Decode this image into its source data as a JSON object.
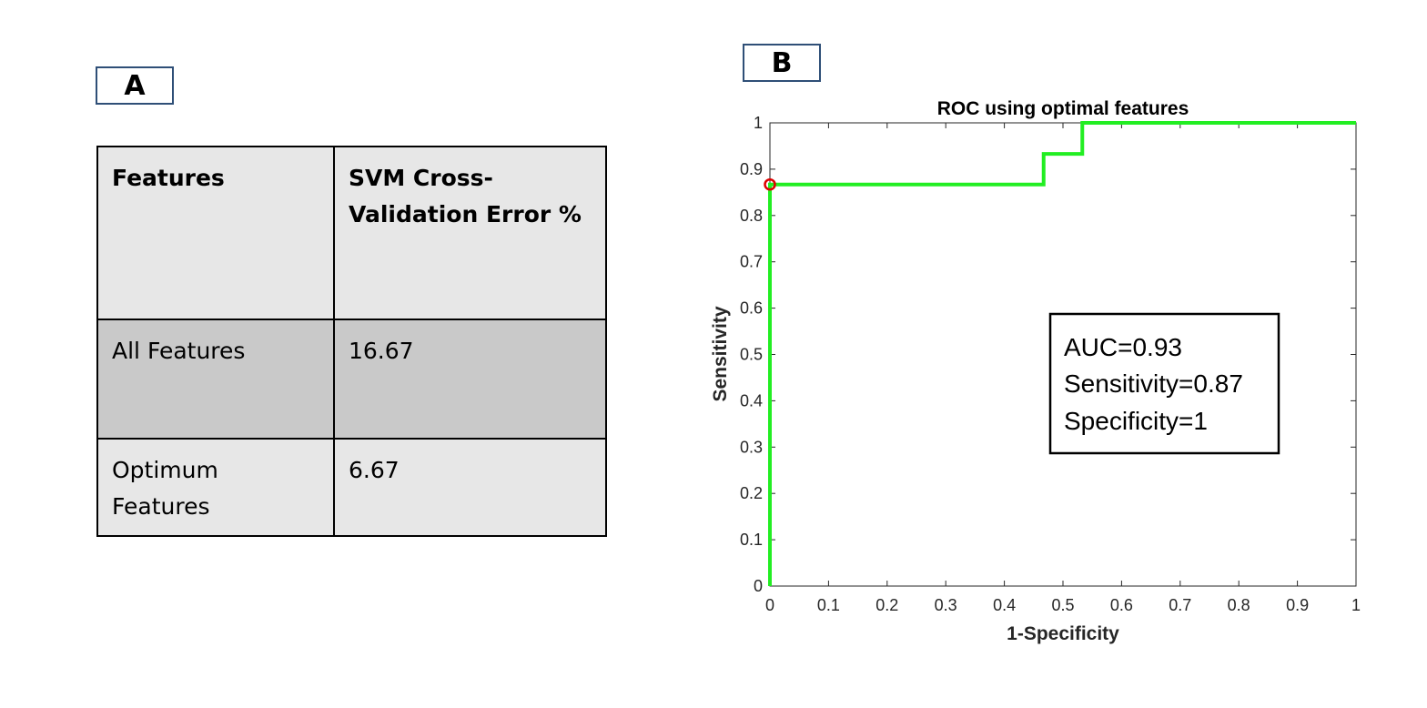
{
  "panel_a": {
    "label": "A",
    "table": {
      "headers": [
        "Features",
        "SVM Cross-Validation Error %"
      ],
      "header_lines": [
        [
          "Features"
        ],
        [
          "SVM Cross-",
          "Validation Error %"
        ]
      ],
      "rows": [
        {
          "feature": "All Features",
          "feature_lines": [
            "All Features"
          ],
          "error": "16.67"
        },
        {
          "feature": "Optimum Features",
          "feature_lines": [
            "Optimum",
            "Features"
          ],
          "error": "6.67"
        }
      ]
    }
  },
  "panel_b": {
    "label": "B"
  },
  "chart_data": {
    "type": "line",
    "title": "ROC using optimal features",
    "xlabel": "1-Specificity",
    "ylabel": "Sensitivity",
    "xlim": [
      0,
      1
    ],
    "ylim": [
      0,
      1
    ],
    "xticks": [
      0,
      0.1,
      0.2,
      0.3,
      0.4,
      0.5,
      0.6,
      0.7,
      0.8,
      0.9,
      1
    ],
    "yticks": [
      0,
      0.1,
      0.2,
      0.3,
      0.4,
      0.5,
      0.6,
      0.7,
      0.8,
      0.9,
      1
    ],
    "xtick_labels": [
      "0",
      "0.1",
      "0.2",
      "0.3",
      "0.4",
      "0.5",
      "0.6",
      "0.7",
      "0.8",
      "0.9",
      "1"
    ],
    "ytick_labels": [
      "0",
      "0.1",
      "0.2",
      "0.3",
      "0.4",
      "0.5",
      "0.6",
      "0.7",
      "0.8",
      "0.9",
      "1"
    ],
    "grid": false,
    "series": [
      {
        "name": "ROC",
        "color": "#22ee22",
        "x": [
          0,
          0,
          0.467,
          0.467,
          0.533,
          0.533,
          1
        ],
        "y": [
          0,
          0.867,
          0.867,
          0.933,
          0.933,
          1,
          1
        ]
      }
    ],
    "marker": {
      "x": 0,
      "y": 0.867,
      "color": "#dd0000",
      "shape": "circle"
    },
    "annotation_lines": [
      "AUC=0.93",
      "Sensitivity=0.87",
      "Specificity=1"
    ],
    "axis_color": "#262626"
  }
}
